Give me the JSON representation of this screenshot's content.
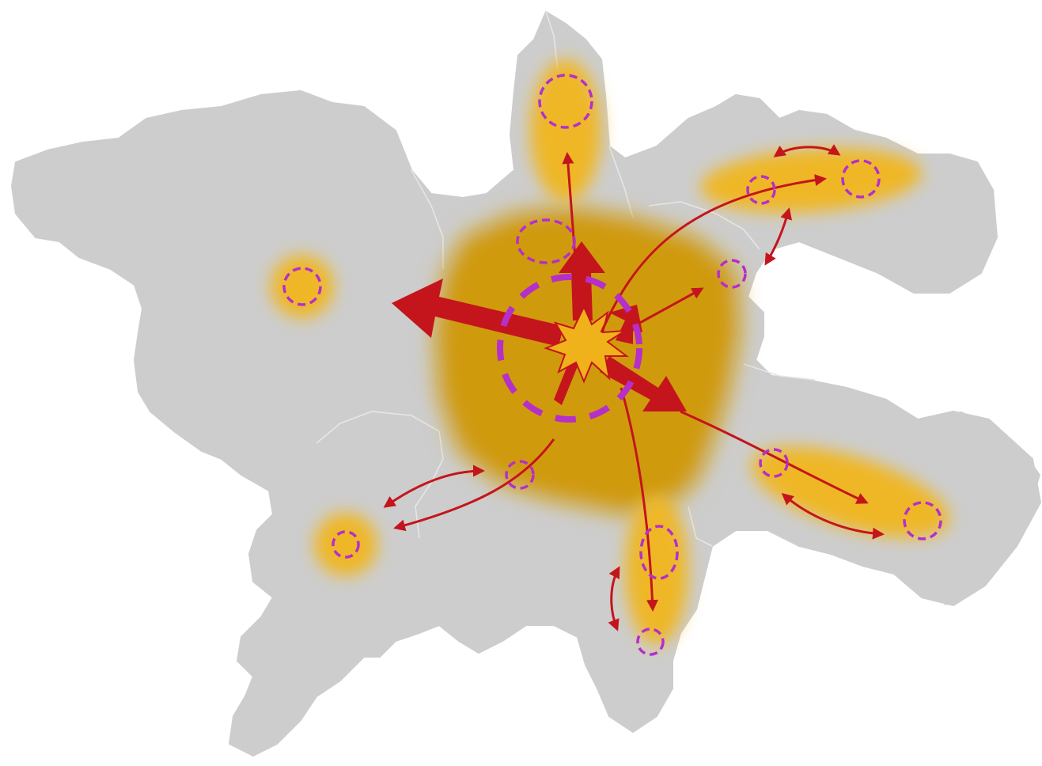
{
  "map": {
    "colors": {
      "background": "#ffffff",
      "land": "#cdcdcd",
      "border": "#e2e2e2",
      "core_zone": "#d09a10",
      "secondary_zone": "#efb725",
      "flow_arrow": "#c4151c",
      "center_burst": "#f0b21a",
      "node_outline": "#b52fc9"
    },
    "icons": [
      "starburst-icon",
      "arrow-icon",
      "double-arrow-icon",
      "dashed-circle-icon"
    ],
    "core_node": {
      "name": "central-metropolis"
    },
    "secondary_nodes": [
      "north-node",
      "north-inner-node",
      "northeast-node-1",
      "northeast-node-2",
      "east-node",
      "west-node",
      "southwest-node",
      "southwest-inner-node",
      "south-node-1",
      "south-node-2",
      "southeast-node-1",
      "southeast-node-2"
    ]
  }
}
